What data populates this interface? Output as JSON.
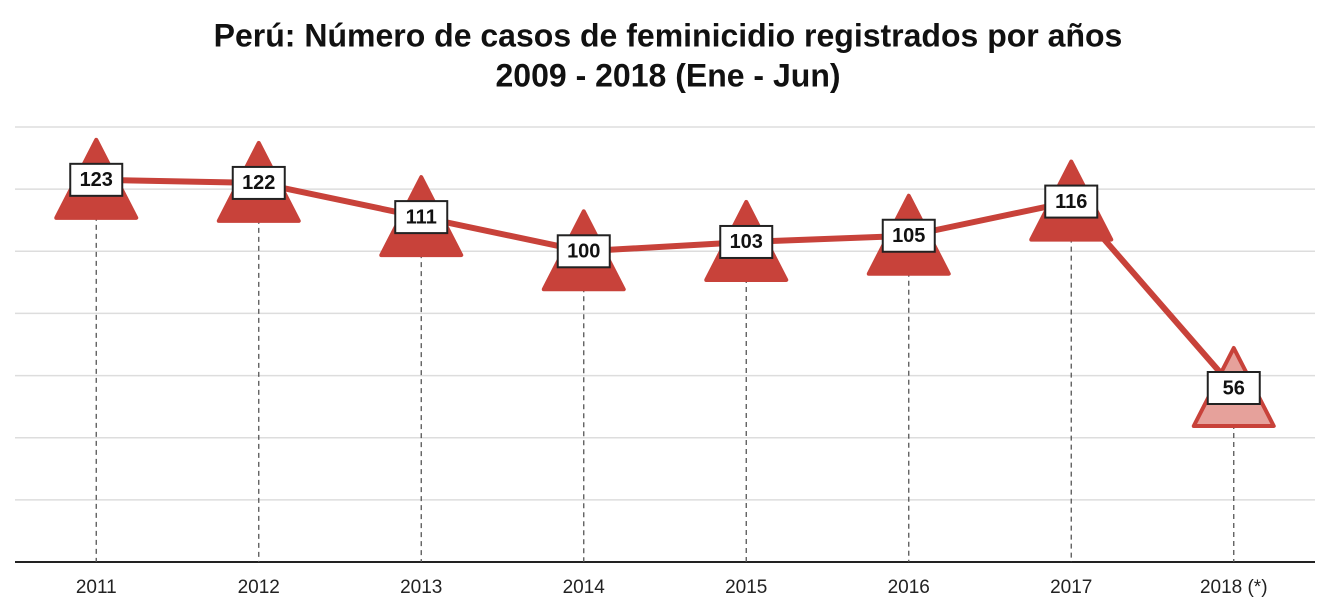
{
  "chart_data": {
    "type": "line",
    "title": "Perú: Número de casos de feminicidio registrados por años",
    "subtitle": "2009 - 2018 (Ene - Jun)",
    "categories": [
      "2011",
      "2012",
      "2013",
      "2014",
      "2015",
      "2016",
      "2017",
      "2018 (*)"
    ],
    "series": [
      {
        "name": "Casos de feminicidio",
        "color": "#c8423a",
        "values": [
          123,
          122,
          111,
          100,
          103,
          105,
          116,
          56
        ],
        "point_colors": [
          "#c8423a",
          "#c8423a",
          "#c8423a",
          "#c8423a",
          "#c8423a",
          "#c8423a",
          "#c8423a",
          "#e6a19b"
        ]
      }
    ],
    "ylim": [
      0,
      140
    ],
    "yticks": [
      0,
      20,
      40,
      60,
      80,
      100,
      120,
      140
    ],
    "grid": true
  }
}
